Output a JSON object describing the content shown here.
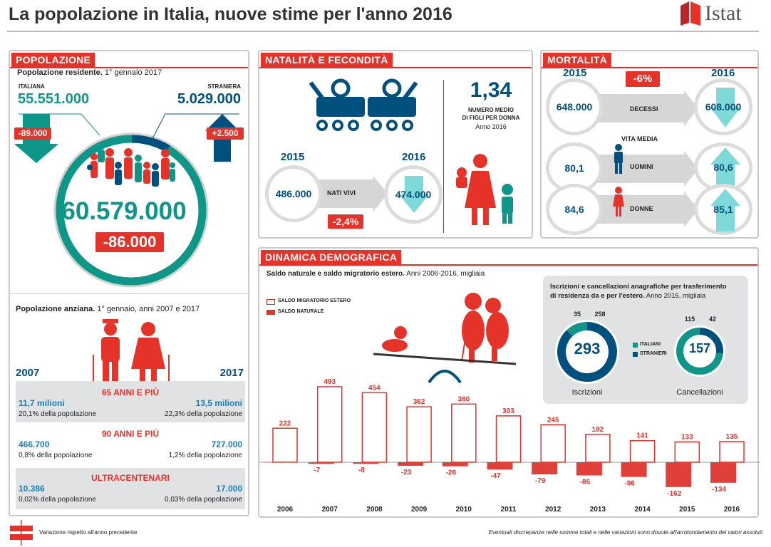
{
  "title": "La popolazione in Italia, nuove stime per l'anno 2016",
  "logo": "Istat",
  "popolazione": {
    "header": "POPOLAZIONE",
    "subtitle_bold": "Popolazione residente.",
    "subtitle": "1° gennaio 2017",
    "italiana_label": "ITALIANA",
    "italiana_value": "55.551.000",
    "italiana_change": "-89.000",
    "straniera_label": "STRANIERA",
    "straniera_value": "5.029.000",
    "straniera_change": "+2.500",
    "total": "60.579.000",
    "total_change": "-86.000",
    "anziana_bold": "Popolazione anziana.",
    "anziana_sub": "1° gennaio, anni 2007 e 2017",
    "year_left": "2007",
    "year_right": "2017",
    "rows": [
      {
        "label": "65 ANNI E PIÙ",
        "left_value": "11,7 milioni",
        "left_pct": "20,1% della popolazione",
        "right_value": "13,5 milioni",
        "right_pct": "22,3% della popolazione"
      },
      {
        "label": "90 ANNI E PIÙ",
        "left_value": "466.700",
        "left_pct": "0,8% della popolazione",
        "right_value": "727.000",
        "right_pct": "1,2% della popolazione"
      },
      {
        "label": "ULTRACENTENARI",
        "left_value": "10.386",
        "left_pct": "0,02% della popolazione",
        "right_value": "17.000",
        "right_pct": "0,03% della popolazione"
      }
    ]
  },
  "natalita": {
    "header": "NATALITÀ E FECONDITÀ",
    "fertility": "1,34",
    "fertility_label_1": "NUMERO MEDIO",
    "fertility_label_2": "DI FIGLI PER DONNA",
    "fertility_year": "Anno 2016",
    "year_left": "2015",
    "year_right": "2016",
    "value_left": "486.000",
    "value_right": "474.000",
    "label": "NATI VIVI",
    "change": "-2,4%"
  },
  "mortalita": {
    "header": "MORTALITÀ",
    "year_left": "2015",
    "year_right": "2016",
    "change": "-6%",
    "deaths_left": "648.000",
    "deaths_label": "DECESSI",
    "deaths_right": "608.000",
    "life_label": "VITA MEDIA",
    "men_left": "80,1",
    "men_label": "UOMINI",
    "men_right": "80,6",
    "women_left": "84,6",
    "women_label": "DONNE",
    "women_right": "85,1"
  },
  "dinamica": {
    "header": "DINAMICA DEMOGRAFICA",
    "subtitle_bold": "Saldo naturale e saldo migratorio estero.",
    "subtitle": "Anni 2006-2016, migliaia",
    "box_title_bold_1": "Iscrizioni e cancellazioni anagrafiche per trasferimento",
    "box_title_bold_2": "di residenza da e per l'estero.",
    "box_title": "Anno 2016, migliaia"
  },
  "footer": {
    "legend": "Variazione rispetto all'anno precedente",
    "note": "Eventuali discrepanze nelle somme totali e nelle variazioni sono dovute all'arrotondamento dei valori assoluti"
  },
  "colors": {
    "teal": "#0e9688",
    "blue": "#00507f",
    "red": "#e63329",
    "gray": "#e1e2e3"
  },
  "chart_data": [
    {
      "type": "bar",
      "categories": [
        "2006",
        "2007",
        "2008",
        "2009",
        "2010",
        "2011",
        "2012",
        "2013",
        "2014",
        "2015",
        "2016"
      ],
      "series": [
        {
          "name": "SALDO MIGRATORIO ESTERO",
          "values": [
            222,
            493,
            454,
            362,
            380,
            303,
            245,
            182,
            141,
            133,
            135
          ]
        },
        {
          "name": "SALDO NATURALE",
          "values": [
            2,
            -7,
            -8,
            -23,
            -26,
            -47,
            -79,
            -86,
            -96,
            -162,
            -134
          ]
        }
      ],
      "legend": "top-left",
      "grid": false
    },
    {
      "type": "pie",
      "title": "Iscrizioni",
      "total": "293",
      "categories": [
        "ITALIANI",
        "STRANIERI"
      ],
      "values": [
        35,
        258
      ]
    },
    {
      "type": "pie",
      "title": "Cancellazioni",
      "total": "157",
      "categories": [
        "ITALIANI",
        "STRANIERI"
      ],
      "values": [
        115,
        42
      ]
    }
  ]
}
